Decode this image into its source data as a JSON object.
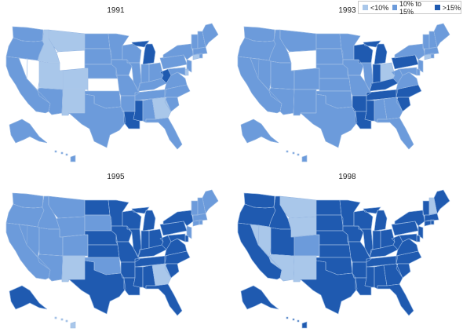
{
  "legend": {
    "items": [
      {
        "label": "<10%",
        "color": "#a9c7ea",
        "level": "low"
      },
      {
        "label": "10% to 15%",
        "color": "#6c9bdb",
        "level": "mid"
      },
      {
        "label": ">15%",
        "color": "#1f5ab0",
        "level": "high"
      }
    ],
    "no_data_color": "#ffffff"
  },
  "maps": [
    {
      "year": "1991",
      "states": {
        "WA": "mid",
        "OR": "mid",
        "CA": "mid",
        "NV": "none",
        "ID": "low",
        "MT": "low",
        "WY": "none",
        "UT": "low",
        "AZ": "mid",
        "CO": "low",
        "NM": "low",
        "ND": "mid",
        "SD": "mid",
        "NE": "mid",
        "KS": "none",
        "OK": "mid",
        "TX": "mid",
        "MN": "mid",
        "IA": "mid",
        "MO": "mid",
        "AR": "mid",
        "LA": "high",
        "WI": "mid",
        "IL": "mid",
        "MI": "high",
        "IN": "mid",
        "KY": "mid",
        "TN": "mid",
        "MS": "high",
        "AL": "mid",
        "OH": "mid",
        "WV": "high",
        "VA": "mid",
        "NC": "mid",
        "SC": "mid",
        "GA": "low",
        "FL": "mid",
        "PA": "mid",
        "NY": "mid",
        "NJ": "mid",
        "DE": "low",
        "MD": "mid",
        "CT": "low",
        "RI": "mid",
        "MA": "mid",
        "VT": "mid",
        "NH": "mid",
        "ME": "mid",
        "AK": "mid",
        "HI": "mid"
      }
    },
    {
      "year": "1993",
      "states": {
        "WA": "mid",
        "OR": "mid",
        "CA": "mid",
        "NV": "mid",
        "ID": "mid",
        "MT": "mid",
        "WY": "none",
        "UT": "mid",
        "AZ": "mid",
        "CO": "mid",
        "NM": "mid",
        "ND": "mid",
        "SD": "mid",
        "NE": "mid",
        "KS": "mid",
        "OK": "mid",
        "TX": "mid",
        "MN": "mid",
        "IA": "mid",
        "MO": "mid",
        "AR": "high",
        "LA": "high",
        "WI": "high",
        "IL": "mid",
        "MI": "high",
        "IN": "high",
        "KY": "high",
        "TN": "high",
        "MS": "high",
        "AL": "mid",
        "OH": "low",
        "WV": "mid",
        "VA": "mid",
        "NC": "high",
        "SC": "high",
        "GA": "mid",
        "FL": "mid",
        "PA": "high",
        "NY": "mid",
        "NJ": "mid",
        "DE": "mid",
        "MD": "mid",
        "CT": "low",
        "RI": "mid",
        "MA": "mid",
        "VT": "mid",
        "NH": "mid",
        "ME": "mid",
        "AK": "mid",
        "HI": "mid"
      }
    },
    {
      "year": "1995",
      "states": {
        "WA": "mid",
        "OR": "mid",
        "CA": "mid",
        "NV": "mid",
        "ID": "mid",
        "MT": "mid",
        "WY": "mid",
        "UT": "mid",
        "AZ": "mid",
        "CO": "mid",
        "NM": "low",
        "ND": "high",
        "SD": "mid",
        "NE": "high",
        "KS": "high",
        "OK": "mid",
        "TX": "high",
        "MN": "high",
        "IA": "high",
        "MO": "high",
        "AR": "high",
        "LA": "high",
        "WI": "high",
        "IL": "high",
        "MI": "high",
        "IN": "high",
        "KY": "high",
        "TN": "high",
        "MS": "high",
        "AL": "high",
        "OH": "high",
        "WV": "high",
        "VA": "high",
        "NC": "high",
        "SC": "high",
        "GA": "low",
        "FL": "high",
        "PA": "high",
        "NY": "high",
        "NJ": "mid",
        "DE": "high",
        "MD": "high",
        "CT": "mid",
        "RI": "mid",
        "MA": "mid",
        "VT": "mid",
        "NH": "mid",
        "ME": "mid",
        "AK": "high",
        "HI": "low"
      }
    },
    {
      "year": "1998",
      "states": {
        "WA": "high",
        "OR": "high",
        "CA": "high",
        "NV": "low",
        "ID": "high",
        "MT": "low",
        "WY": "low",
        "UT": "high",
        "AZ": "low",
        "CO": "mid",
        "NM": "low",
        "ND": "high",
        "SD": "high",
        "NE": "high",
        "KS": "high",
        "OK": "high",
        "TX": "high",
        "MN": "high",
        "IA": "high",
        "MO": "high",
        "AR": "high",
        "LA": "high",
        "WI": "high",
        "IL": "high",
        "MI": "high",
        "IN": "high",
        "KY": "high",
        "TN": "high",
        "MS": "high",
        "AL": "high",
        "OH": "high",
        "WV": "high",
        "VA": "high",
        "NC": "high",
        "SC": "high",
        "GA": "high",
        "FL": "high",
        "PA": "high",
        "NY": "high",
        "NJ": "high",
        "DE": "high",
        "MD": "high",
        "CT": "high",
        "RI": "high",
        "MA": "high",
        "VT": "high",
        "NH": "low",
        "ME": "high",
        "AK": "high",
        "HI": "high"
      }
    }
  ]
}
